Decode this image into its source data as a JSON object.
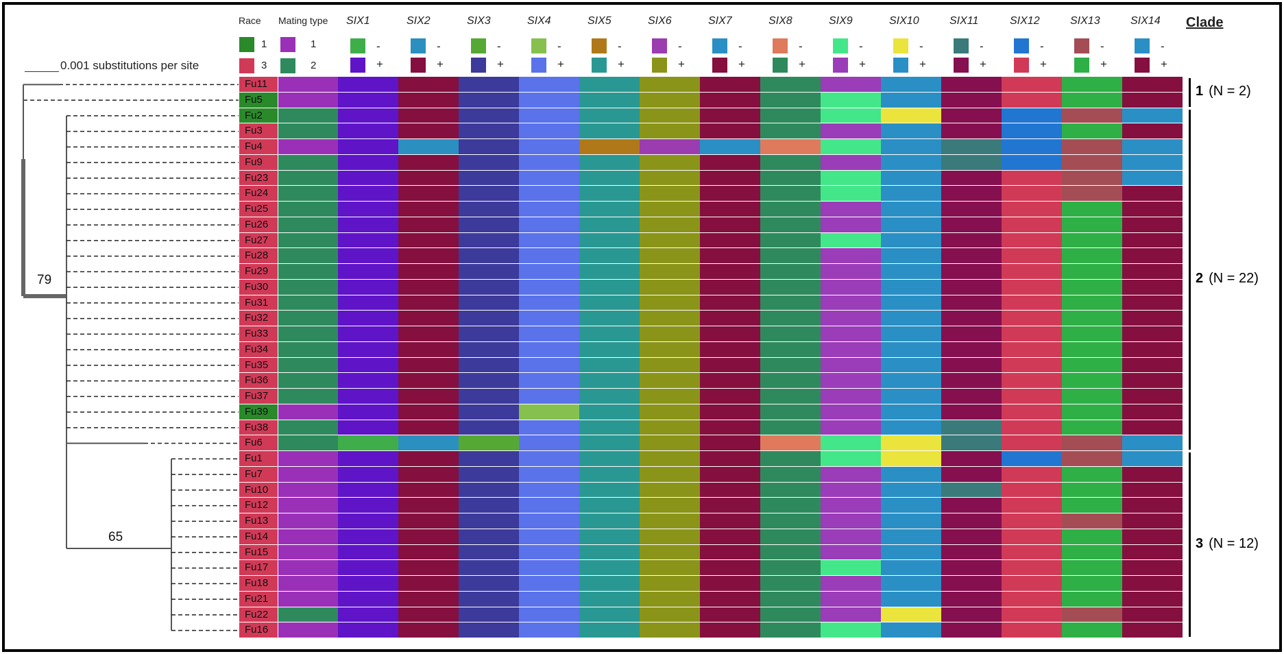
{
  "header": {
    "race": "Race",
    "mating_type": "Mating type",
    "clade": "Clade",
    "genes": [
      "SIX1",
      "SIX2",
      "SIX3",
      "SIX4",
      "SIX5",
      "SIX6",
      "SIX7",
      "SIX8",
      "SIX9",
      "SIX10",
      "SIX11",
      "SIX12",
      "SIX13",
      "SIX14"
    ]
  },
  "legend": {
    "race": [
      {
        "label": "1",
        "color": "#2a8a2a"
      },
      {
        "label": "3",
        "color": "#d13a57"
      }
    ],
    "mating": [
      {
        "label": "1",
        "color": "#9b30b8"
      },
      {
        "label": "2",
        "color": "#2e8a5c"
      }
    ],
    "minus": "-",
    "plus": "+"
  },
  "scale": {
    "label": "0.001 substitutions per site"
  },
  "bootstrap": [
    "79",
    "65"
  ],
  "clades": [
    {
      "num": "1",
      "n": "(N = 2)"
    },
    {
      "num": "2",
      "n": "(N = 22)"
    },
    {
      "num": "3",
      "n": "(N = 12)"
    }
  ],
  "colors": {
    "race1": "#2a8a2a",
    "race3": "#d13a57",
    "mt1": "#9b30b8",
    "mt2": "#2e8a5c",
    "minus": [
      "#3fae4a",
      "#2b8fbf",
      "#56a835",
      "#86c04e",
      "#b07819",
      "#9b3cb0",
      "#2a8fc4",
      "#df7a5c",
      "#44e68a",
      "#eae43c",
      "#3a7a7a",
      "#2176d2",
      "#a44d55",
      "#2a8fc4"
    ],
    "plus": [
      "#5f14c8",
      "#850f3f",
      "#3c3a9a",
      "#5a72ea",
      "#2a9892",
      "#8a9418",
      "#850f3f",
      "#2e8a5c",
      "#9b3cb8",
      "#2a8fc4",
      "#850f4f",
      "#d13a57",
      "#2eb046",
      "#850f3f"
    ]
  },
  "rows": [
    {
      "name": "Fu11",
      "race": 3,
      "mt": 1,
      "six": "++++++++++++++"
    },
    {
      "name": "Fu5",
      "race": 1,
      "mt": 1,
      "six": "++++++++-+++++"
    },
    {
      "name": "Fu2",
      "race": 1,
      "mt": 2,
      "six": "++++++++--+---"
    },
    {
      "name": "Fu3",
      "race": 3,
      "mt": 2,
      "six": "+++++++++++-++"
    },
    {
      "name": "Fu4",
      "race": 3,
      "mt": 1,
      "six": "+-++-----+----"
    },
    {
      "name": "Fu9",
      "race": 3,
      "mt": 2,
      "six": "++++++++++----"
    },
    {
      "name": "Fu23",
      "race": 3,
      "mt": 2,
      "six": "++++++++-+++--"
    },
    {
      "name": "Fu24",
      "race": 3,
      "mt": 2,
      "six": "++++++++-+++-+"
    },
    {
      "name": "Fu25",
      "race": 3,
      "mt": 2,
      "six": "++++++++++++++"
    },
    {
      "name": "Fu26",
      "race": 3,
      "mt": 2,
      "six": "++++++++++++++"
    },
    {
      "name": "Fu27",
      "race": 3,
      "mt": 2,
      "six": "++++++++-+++++"
    },
    {
      "name": "Fu28",
      "race": 3,
      "mt": 2,
      "six": "++++++++++++++"
    },
    {
      "name": "Fu29",
      "race": 3,
      "mt": 2,
      "six": "++++++++++++++"
    },
    {
      "name": "Fu30",
      "race": 3,
      "mt": 2,
      "six": "++++++++++++++"
    },
    {
      "name": "Fu31",
      "race": 3,
      "mt": 2,
      "six": "++++++++++++++"
    },
    {
      "name": "Fu32",
      "race": 3,
      "mt": 2,
      "six": "++++++++++++++"
    },
    {
      "name": "Fu33",
      "race": 3,
      "mt": 2,
      "six": "++++++++++++++"
    },
    {
      "name": "Fu34",
      "race": 3,
      "mt": 2,
      "six": "++++++++++++++"
    },
    {
      "name": "Fu35",
      "race": 3,
      "mt": 2,
      "six": "++++++++++++++"
    },
    {
      "name": "Fu36",
      "race": 3,
      "mt": 2,
      "six": "++++++++++++++"
    },
    {
      "name": "Fu37",
      "race": 3,
      "mt": 2,
      "six": "++++++++++++++"
    },
    {
      "name": "Fu39",
      "race": 1,
      "mt": 1,
      "six": "+++-++++++++++"
    },
    {
      "name": "Fu38",
      "race": 3,
      "mt": 2,
      "six": "++++++++++-+++"
    },
    {
      "name": "Fu6",
      "race": 3,
      "mt": 2,
      "six": "---++++----+--"
    },
    {
      "name": "Fu1",
      "race": 3,
      "mt": 1,
      "six": "++++++++--+---"
    },
    {
      "name": "Fu7",
      "race": 3,
      "mt": 1,
      "six": "++++++++++++++"
    },
    {
      "name": "Fu10",
      "race": 3,
      "mt": 1,
      "six": "++++++++++-+++"
    },
    {
      "name": "Fu12",
      "race": 3,
      "mt": 1,
      "six": "++++++++++++++"
    },
    {
      "name": "Fu13",
      "race": 3,
      "mt": 1,
      "six": "++++++++++++-+"
    },
    {
      "name": "Fu14",
      "race": 3,
      "mt": 1,
      "six": "++++++++++++++"
    },
    {
      "name": "Fu15",
      "race": 3,
      "mt": 1,
      "six": "++++++++++++++"
    },
    {
      "name": "Fu17",
      "race": 3,
      "mt": 1,
      "six": "++++++++-+++++"
    },
    {
      "name": "Fu18",
      "race": 3,
      "mt": 1,
      "six": "++++++++++++++"
    },
    {
      "name": "Fu21",
      "race": 3,
      "mt": 1,
      "six": "++++++++++++++"
    },
    {
      "name": "Fu22",
      "race": 3,
      "mt": 2,
      "six": "+++++++++-++-+"
    },
    {
      "name": "Fu16",
      "race": 3,
      "mt": 1,
      "six": "++++++++-+++++"
    }
  ]
}
